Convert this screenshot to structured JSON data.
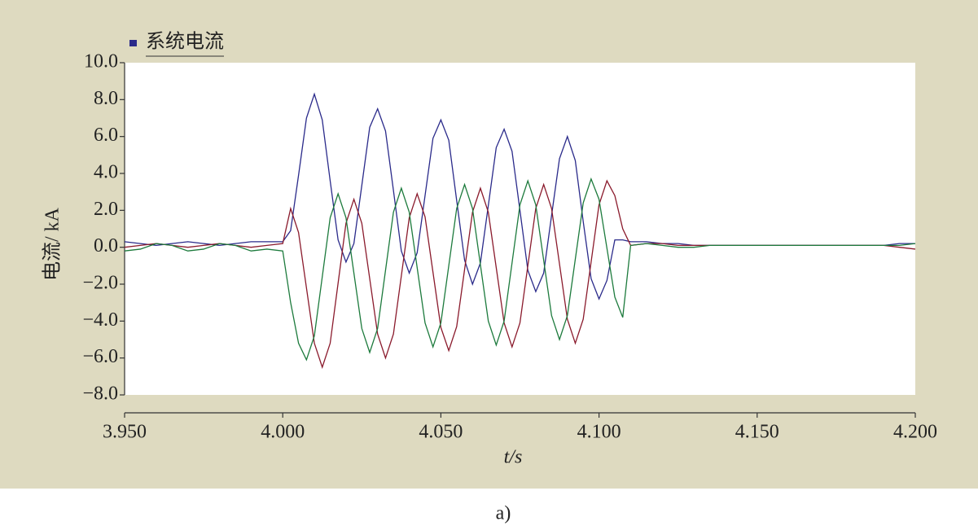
{
  "chart_data": {
    "type": "line",
    "x_label": "t/s",
    "y_label": "电流/ kA",
    "x": [
      3.95,
      3.955,
      3.96,
      3.965,
      3.97,
      3.975,
      3.98,
      3.985,
      3.99,
      3.995,
      4.0,
      4.0025,
      4.005,
      4.0075,
      4.01,
      4.0125,
      4.015,
      4.0175,
      4.02,
      4.0225,
      4.025,
      4.0275,
      4.03,
      4.0325,
      4.035,
      4.0375,
      4.04,
      4.0425,
      4.045,
      4.0475,
      4.05,
      4.0525,
      4.055,
      4.0575,
      4.06,
      4.0625,
      4.065,
      4.0675,
      4.07,
      4.0725,
      4.075,
      4.0775,
      4.08,
      4.0825,
      4.085,
      4.0875,
      4.09,
      4.0925,
      4.095,
      4.0975,
      4.1,
      4.1025,
      4.105,
      4.1075,
      4.11,
      4.115,
      4.12,
      4.125,
      4.13,
      4.135,
      4.14,
      4.145,
      4.15,
      4.155,
      4.16,
      4.165,
      4.17,
      4.175,
      4.18,
      4.185,
      4.19,
      4.195,
      4.2
    ],
    "series": [
      {
        "name": "系统电流",
        "color": "#2a2a8a",
        "values": [
          0.3,
          0.2,
          0.1,
          0.2,
          0.3,
          0.2,
          0.1,
          0.2,
          0.3,
          0.3,
          0.3,
          0.9,
          3.9,
          7.0,
          8.3,
          6.9,
          3.6,
          0.4,
          -0.8,
          0.2,
          3.35,
          6.5,
          7.5,
          6.3,
          3.08,
          -0.2,
          -1.4,
          -0.3,
          2.8,
          5.9,
          6.9,
          5.8,
          2.53,
          -0.7,
          -2.0,
          -0.85,
          2.26,
          5.4,
          6.4,
          5.2,
          2.0,
          -1.25,
          -2.4,
          -1.4,
          1.72,
          4.8,
          6.0,
          4.7,
          1.4,
          -1.7,
          -2.8,
          -1.8,
          0.4,
          0.4,
          0.3,
          0.3,
          0.2,
          0.2,
          0.1,
          0.1,
          0.1,
          0.1,
          0.1,
          0.1,
          0.1,
          0.1,
          0.1,
          0.1,
          0.1,
          0.1,
          0.1,
          0.2,
          0.2
        ]
      },
      {
        "color": "#8a1a2c",
        "values": [
          0.0,
          0.1,
          0.2,
          0.1,
          0.0,
          0.1,
          0.2,
          0.1,
          0.0,
          0.1,
          0.2,
          2.1,
          0.8,
          -2.2,
          -5.2,
          -6.5,
          -5.2,
          -1.95,
          1.3,
          2.6,
          1.3,
          -1.7,
          -4.7,
          -6.0,
          -4.7,
          -1.55,
          1.6,
          2.9,
          1.65,
          -1.35,
          -4.35,
          -5.6,
          -4.3,
          -1.2,
          1.9,
          3.2,
          1.9,
          -1.1,
          -4.1,
          -5.4,
          -4.1,
          -1.0,
          2.1,
          3.4,
          2.1,
          -0.9,
          -3.9,
          -5.2,
          -3.9,
          -0.8,
          2.3,
          3.6,
          2.8,
          1.0,
          0.1,
          0.2,
          0.2,
          0.1,
          0.1,
          0.1,
          0.1,
          0.1,
          0.1,
          0.1,
          0.1,
          0.1,
          0.1,
          0.1,
          0.1,
          0.1,
          0.1,
          0.0,
          -0.1
        ]
      },
      {
        "color": "#1c7a3c",
        "values": [
          -0.2,
          -0.1,
          0.2,
          0.1,
          -0.2,
          -0.1,
          0.2,
          0.1,
          -0.2,
          -0.1,
          -0.2,
          -3.0,
          -5.2,
          -6.1,
          -4.8,
          -1.6,
          1.6,
          2.9,
          1.6,
          -1.4,
          -4.4,
          -5.7,
          -4.4,
          -1.25,
          1.9,
          3.2,
          1.9,
          -1.1,
          -4.1,
          -5.4,
          -4.1,
          -1.0,
          2.1,
          3.4,
          2.1,
          -0.95,
          -4.0,
          -5.3,
          -4.0,
          -0.85,
          2.3,
          3.6,
          2.3,
          -0.7,
          -3.7,
          -5.0,
          -3.7,
          -0.65,
          2.4,
          3.7,
          2.6,
          -0.05,
          -2.7,
          -3.8,
          0.1,
          0.2,
          0.1,
          0.0,
          0.0,
          0.1,
          0.1,
          0.1,
          0.1,
          0.1,
          0.1,
          0.1,
          0.1,
          0.1,
          0.1,
          0.1,
          0.1,
          0.1,
          0.2
        ]
      }
    ],
    "xlim": [
      3.95,
      4.2
    ],
    "xticks": [
      {
        "value": 3.95,
        "label": "3.950"
      },
      {
        "value": 4.0,
        "label": "4.000"
      },
      {
        "value": 4.05,
        "label": "4.050"
      },
      {
        "value": 4.1,
        "label": "4.100"
      },
      {
        "value": 4.15,
        "label": "4.150"
      },
      {
        "value": 4.2,
        "label": "4.200"
      }
    ],
    "ylim": [
      -8,
      10
    ],
    "yticks": [
      {
        "value": 10,
        "label": "10.0"
      },
      {
        "value": 8,
        "label": "8.0"
      },
      {
        "value": 6,
        "label": "6.0"
      },
      {
        "value": 4,
        "label": "4.0"
      },
      {
        "value": 2,
        "label": "2.0"
      },
      {
        "value": 0,
        "label": "0.0"
      },
      {
        "value": -2,
        "label": "−2.0"
      },
      {
        "value": -4,
        "label": "−4.0"
      },
      {
        "value": -6,
        "label": "−6.0"
      },
      {
        "value": -8,
        "label": "−8.0"
      }
    ],
    "legend": "top-left"
  },
  "caption": "a)"
}
